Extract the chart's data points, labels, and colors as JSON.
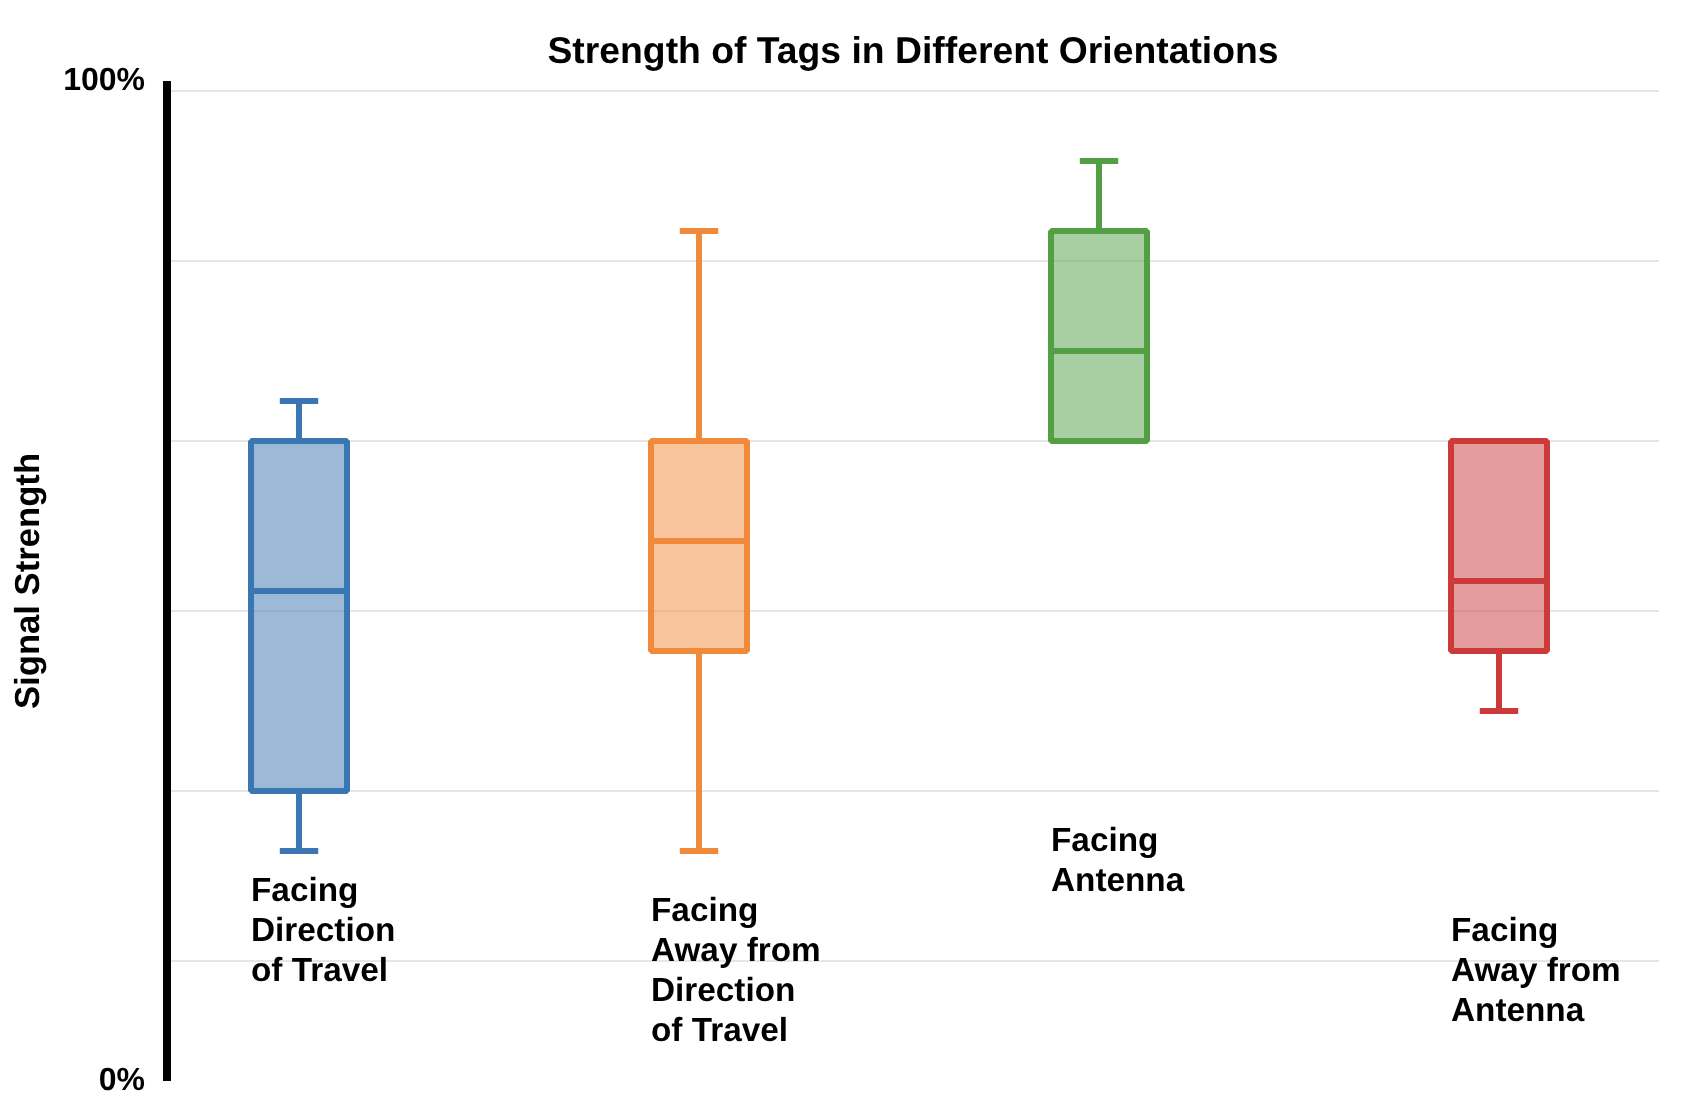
{
  "chart_data": {
    "type": "box",
    "title": "Strength of Tags in Different Orientations",
    "ylabel": "Signal Strength",
    "categories": [
      "Facing\nDirection\nof Travel",
      "Facing\nAway from\nDirection\nof Travel",
      "Facing\nAntenna",
      "Facing\nAway from\nAntenna"
    ],
    "series": [
      {
        "boxes": [
          {
            "low": 23,
            "q1": 29,
            "median": 49,
            "q3": 64,
            "high": 68
          },
          {
            "low": 23,
            "q1": 43,
            "median": 54,
            "q3": 64,
            "high": 85
          },
          {
            "low": 64,
            "q1": 64,
            "median": 73,
            "q3": 85,
            "high": 92
          },
          {
            "low": 37,
            "q1": 43,
            "median": 50,
            "q3": 64,
            "high": 64
          }
        ],
        "colors": [
          "#3a76b2",
          "#f0893a",
          "#52a043",
          "#cc3a3a"
        ]
      }
    ],
    "ylim": [
      0,
      100
    ],
    "yticks": [
      {
        "value": 0,
        "label": "0%"
      },
      {
        "value": 12,
        "label": null
      },
      {
        "value": 29,
        "label": null
      },
      {
        "value": 47,
        "label": null
      },
      {
        "value": 64,
        "label": null
      },
      {
        "value": 82,
        "label": null
      },
      {
        "value": 99,
        "label": null
      },
      {
        "value": 100,
        "label": "100%"
      }
    ],
    "grid": "y"
  }
}
